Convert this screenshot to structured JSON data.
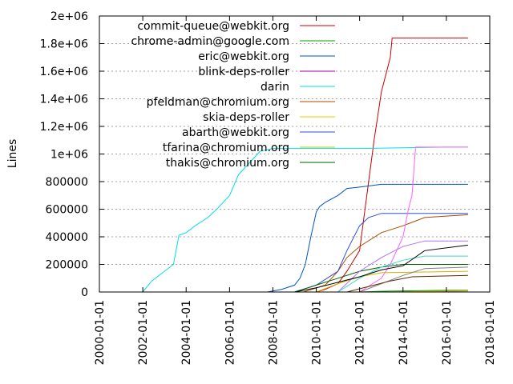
{
  "chart_data": {
    "type": "line",
    "title": "",
    "xlabel": "",
    "ylabel": "Lines",
    "xlim": [
      "2000-01-01",
      "2018-01-01"
    ],
    "ylim": [
      0,
      2000000
    ],
    "grid": true,
    "legend_position": "top-right",
    "x_ticks": [
      "2000-01-01",
      "2002-01-01",
      "2004-01-01",
      "2006-01-01",
      "2008-01-01",
      "2010-01-01",
      "2012-01-01",
      "2014-01-01",
      "2016-01-01",
      "2018-01-01"
    ],
    "y_ticks": [
      {
        "value": 0,
        "label": "0"
      },
      {
        "value": 200000,
        "label": "200000"
      },
      {
        "value": 400000,
        "label": "400000"
      },
      {
        "value": 600000,
        "label": "600000"
      },
      {
        "value": 800000,
        "label": "800000"
      },
      {
        "value": 1000000,
        "label": "1e+06"
      },
      {
        "value": 1200000,
        "label": "1.2e+06"
      },
      {
        "value": 1400000,
        "label": "1.4e+06"
      },
      {
        "value": 1600000,
        "label": "1.6e+06"
      },
      {
        "value": 1800000,
        "label": "1.8e+06"
      },
      {
        "value": 2000000,
        "label": "2e+06"
      }
    ],
    "series": [
      {
        "name": "commit-queue@webkit.org",
        "color": "#cc0000",
        "x": [
          "2010-01-01",
          "2010-06-01",
          "2011-01-01",
          "2011-06-01",
          "2012-01-01",
          "2012-03-01",
          "2012-06-01",
          "2012-09-01",
          "2013-01-01",
          "2013-06-01",
          "2013-07-01",
          "2016-12-31"
        ],
        "y": [
          0,
          20000,
          60000,
          150000,
          300000,
          500000,
          800000,
          1100000,
          1450000,
          1700000,
          1840000,
          1840000
        ]
      },
      {
        "name": "chrome-admin@google.com",
        "color": "#00a000",
        "x": [
          "2012-01-01",
          "2013-01-01",
          "2014-01-01",
          "2015-01-01",
          "2016-01-01",
          "2016-12-31"
        ],
        "y": [
          0,
          5000,
          8000,
          10000,
          12000,
          12000
        ]
      },
      {
        "name": "eric@webkit.org",
        "color": "#0050c8",
        "x": [
          "2007-10-01",
          "2008-06-01",
          "2009-01-01",
          "2009-04-01",
          "2009-07-01",
          "2009-10-01",
          "2010-01-01",
          "2010-03-01",
          "2010-06-01",
          "2011-01-01",
          "2011-06-01",
          "2012-01-01",
          "2013-01-01",
          "2016-12-31"
        ],
        "y": [
          0,
          20000,
          50000,
          100000,
          200000,
          400000,
          580000,
          620000,
          650000,
          700000,
          750000,
          760000,
          780000,
          780000
        ]
      },
      {
        "name": "blink-deps-roller",
        "color": "#a000a0",
        "x": [
          "2013-06-01",
          "2014-06-01",
          "2015-06-01",
          "2016-12-31"
        ],
        "y": [
          0,
          3000,
          6000,
          8000
        ]
      },
      {
        "name": "darin",
        "color": "#00e0e0",
        "x": [
          "2002-01-01",
          "2002-06-01",
          "2003-01-01",
          "2003-06-01",
          "2003-09-01",
          "2004-01-01",
          "2004-06-01",
          "2005-01-01",
          "2005-06-01",
          "2006-01-01",
          "2006-06-01",
          "2007-01-01",
          "2007-06-01",
          "2008-01-01",
          "2012-01-01",
          "2016-01-01",
          "2016-12-31"
        ],
        "y": [
          0,
          80000,
          150000,
          200000,
          410000,
          430000,
          480000,
          540000,
          600000,
          700000,
          850000,
          950000,
          1020000,
          1040000,
          1040000,
          1050000,
          1050000
        ]
      },
      {
        "name": "pfeldman@chromium.org",
        "color": "#b04800",
        "x": [
          "2009-06-01",
          "2010-06-01",
          "2011-01-01",
          "2011-06-01",
          "2012-01-01",
          "2013-01-01",
          "2014-01-01",
          "2015-01-01",
          "2016-12-31"
        ],
        "y": [
          0,
          50000,
          150000,
          250000,
          330000,
          430000,
          480000,
          540000,
          560000
        ]
      },
      {
        "name": "skia-deps-roller",
        "color": "#e8c800",
        "x": [
          "2013-01-01",
          "2014-01-01",
          "2015-01-01",
          "2016-12-31"
        ],
        "y": [
          0,
          2000,
          5000,
          8000
        ]
      },
      {
        "name": "abarth@webkit.org",
        "color": "#3050d0",
        "x": [
          "2009-01-01",
          "2010-01-01",
          "2011-01-01",
          "2011-06-01",
          "2012-01-01",
          "2012-06-01",
          "2013-01-01",
          "2016-12-31"
        ],
        "y": [
          0,
          50000,
          150000,
          300000,
          480000,
          540000,
          570000,
          570000
        ]
      },
      {
        "name": "tfarina@chromium.org",
        "color": "#d8b000",
        "x": [
          "2010-01-01",
          "2011-01-01",
          "2012-01-01",
          "2013-01-01",
          "2016-12-31"
        ],
        "y": [
          0,
          60000,
          110000,
          140000,
          150000
        ]
      },
      {
        "name": "thakis@chromium.org",
        "color": "#006000",
        "x": [
          "2009-01-01",
          "2010-01-01",
          "2011-01-01",
          "2012-01-01",
          "2013-01-01",
          "2014-01-01",
          "2016-12-31"
        ],
        "y": [
          0,
          50000,
          100000,
          150000,
          180000,
          200000,
          200000
        ]
      },
      {
        "name": "",
        "color": "#ff60ff",
        "x": [
          "2012-01-01",
          "2013-01-01",
          "2013-06-01",
          "2014-01-01",
          "2014-04-01",
          "2014-06-01",
          "2014-08-01",
          "2016-12-31"
        ],
        "y": [
          0,
          100000,
          200000,
          400000,
          600000,
          700000,
          1050000,
          1050000
        ]
      },
      {
        "name": "",
        "color": "#b070ff",
        "x": [
          "2011-01-01",
          "2012-01-01",
          "2013-01-01",
          "2014-01-01",
          "2015-01-01",
          "2016-12-31"
        ],
        "y": [
          0,
          150000,
          250000,
          330000,
          370000,
          370000
        ]
      },
      {
        "name": "",
        "color": "#40d8c8",
        "x": [
          "2011-01-01",
          "2012-01-01",
          "2013-01-01",
          "2014-01-01",
          "2015-01-01",
          "2016-12-31"
        ],
        "y": [
          0,
          100000,
          180000,
          230000,
          260000,
          260000
        ]
      },
      {
        "name": "",
        "color": "#000000",
        "x": [
          "2009-01-01",
          "2010-01-01",
          "2011-01-01",
          "2012-01-01",
          "2013-01-01",
          "2014-01-01",
          "2015-01-01",
          "2016-12-31"
        ],
        "y": [
          0,
          30000,
          70000,
          110000,
          160000,
          190000,
          300000,
          340000
        ]
      },
      {
        "name": "",
        "color": "#808080",
        "x": [
          "2012-01-01",
          "2013-01-01",
          "2014-01-01",
          "2015-01-01",
          "2016-12-31"
        ],
        "y": [
          0,
          60000,
          120000,
          170000,
          180000
        ]
      },
      {
        "name": "",
        "color": "#5a2a00",
        "x": [
          "2011-06-01",
          "2012-06-01",
          "2013-06-01",
          "2014-06-01",
          "2016-12-31"
        ],
        "y": [
          0,
          40000,
          80000,
          110000,
          120000
        ]
      }
    ]
  }
}
